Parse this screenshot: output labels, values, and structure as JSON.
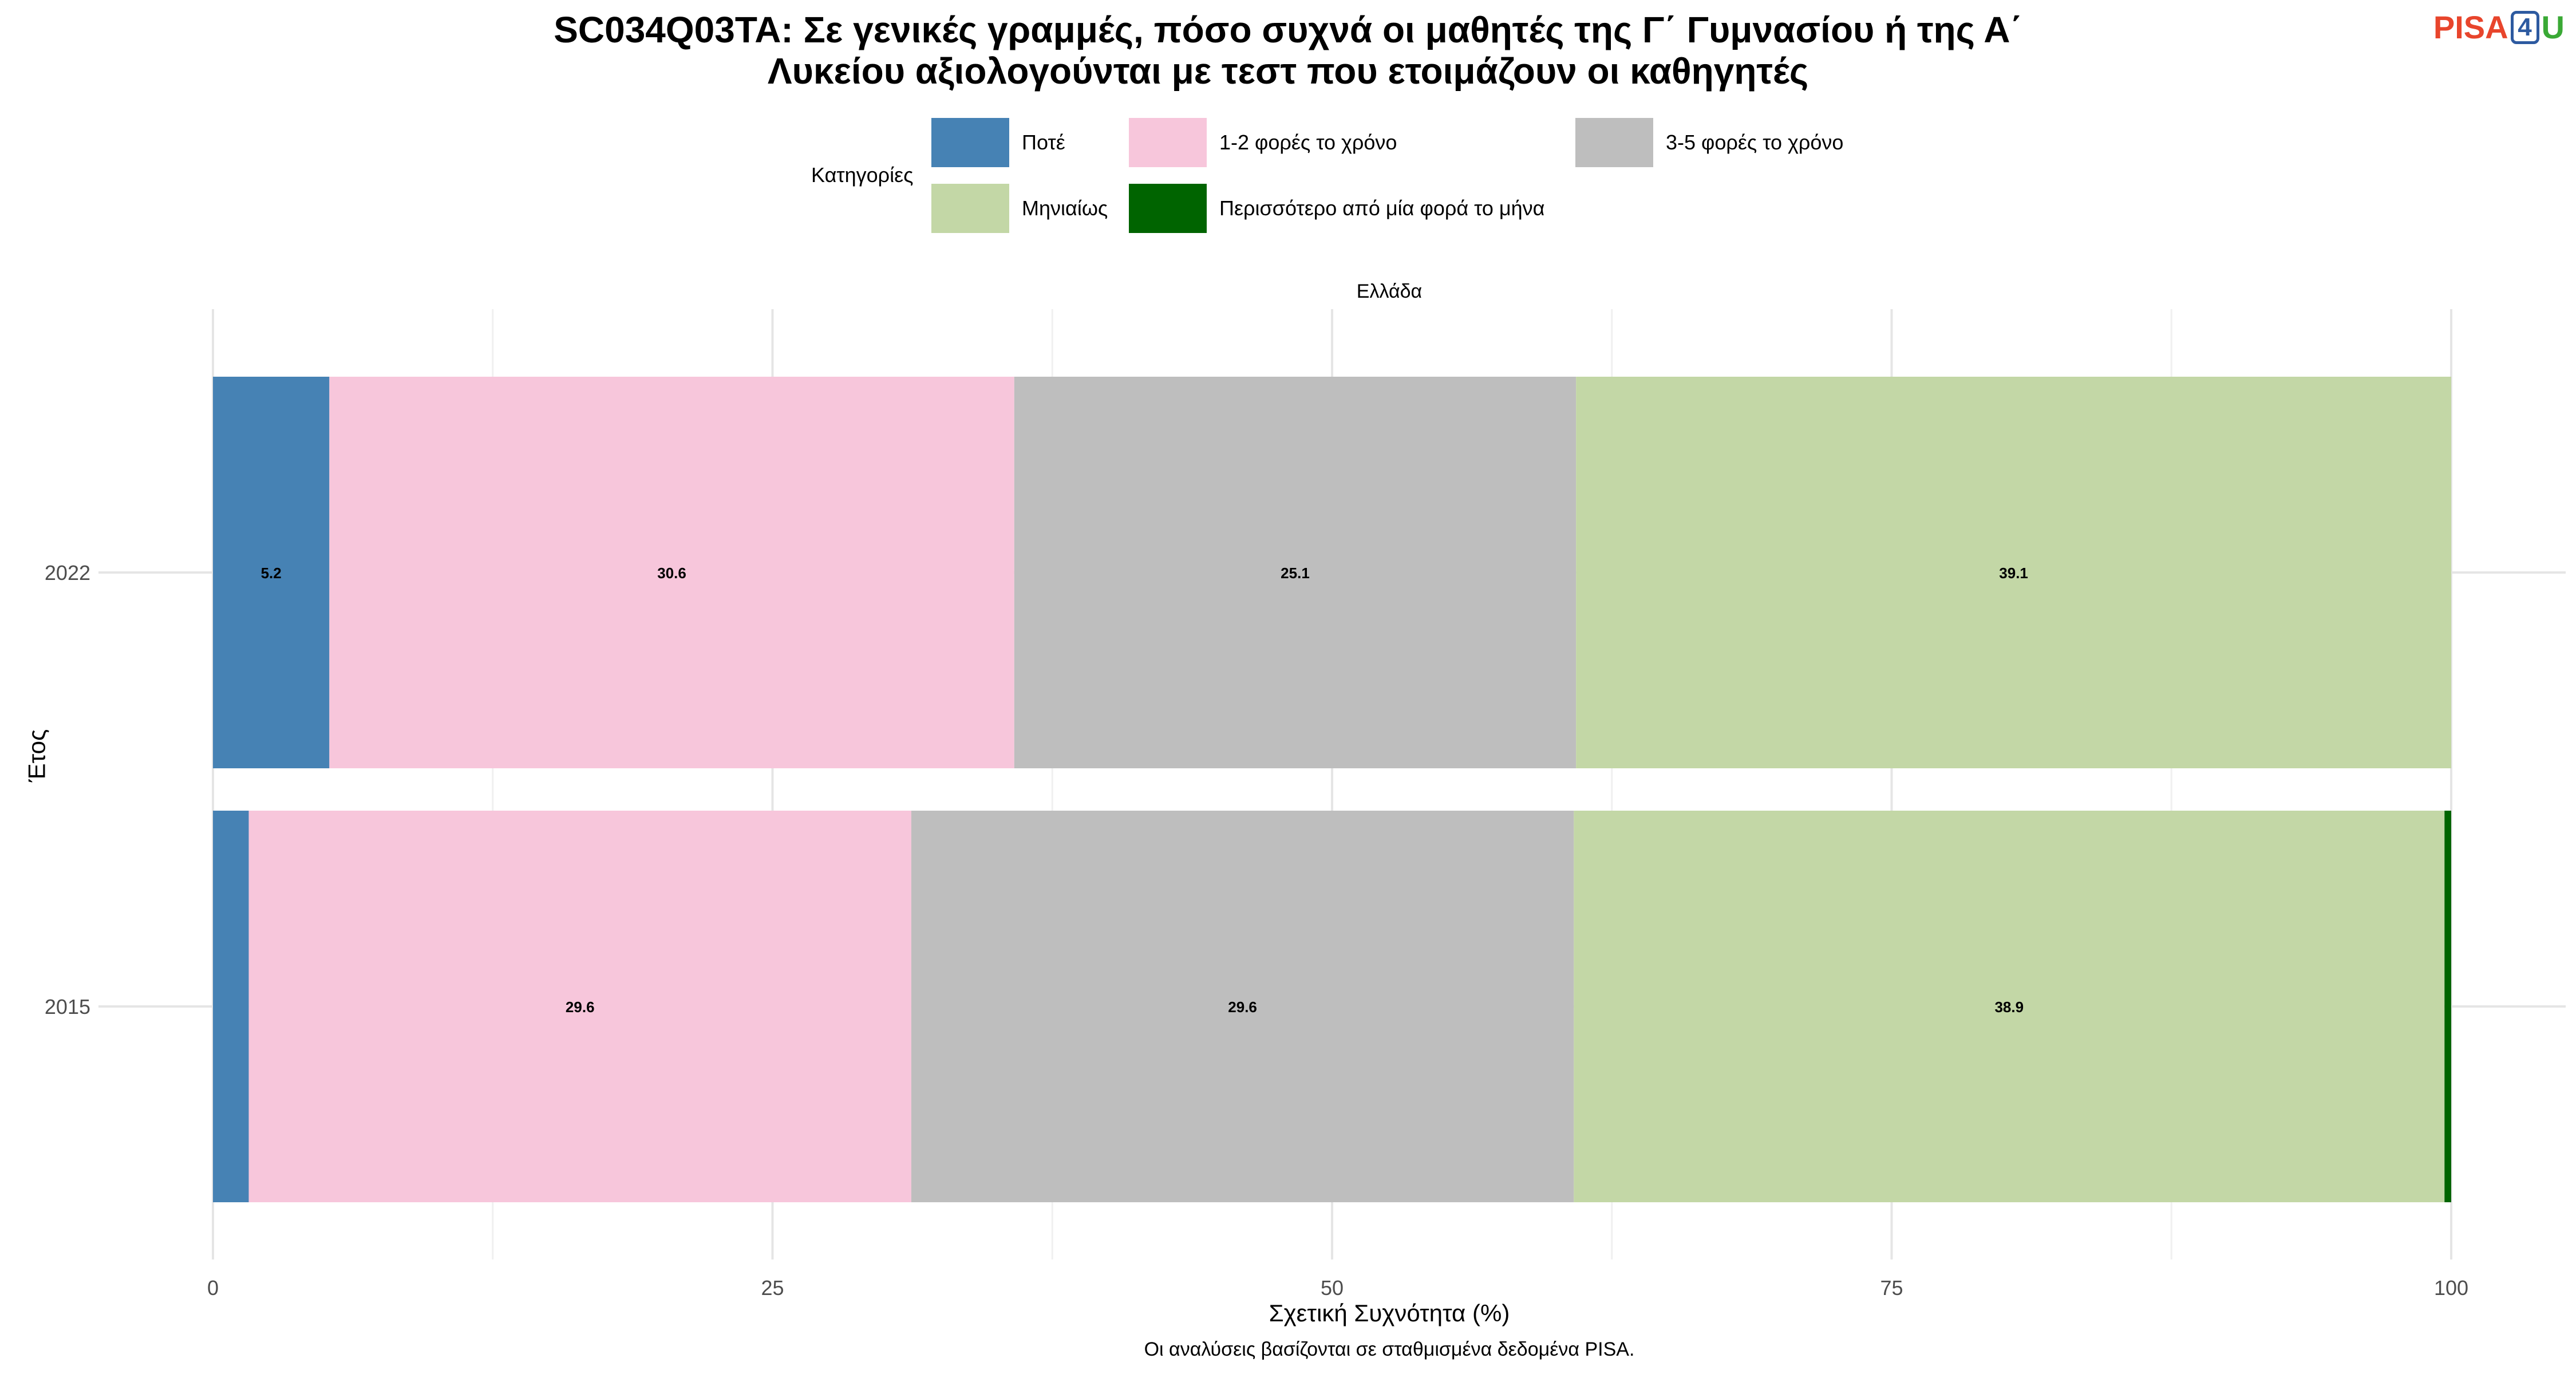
{
  "title": {
    "line1": "SC034Q03TA: Σε γενικές γραμμές, πόσο συχνά οι μαθητές της Γ΄ Γυμνασίου ή της Α΄",
    "line2": "Λυκείου αξιολογούνται με τεστ που ετοιμάζουν οι καθηγητές"
  },
  "logo": {
    "part1": "PISA",
    "part2": "4",
    "part3": "U"
  },
  "legend": {
    "title": "Κατηγορίες",
    "items": [
      {
        "label": "Ποτέ",
        "color": "#4682B4"
      },
      {
        "label": "1-2 φορές το χρόνο",
        "color": "#F7C6DB"
      },
      {
        "label": "3-5 φορές το χρόνο",
        "color": "#BEBEBE"
      },
      {
        "label": "Μηνιαίως",
        "color": "#C3D7A6"
      },
      {
        "label": "Περισσότερο από μία φορά το μήνα",
        "color": "#006400"
      }
    ]
  },
  "facet_label": "Ελλάδα",
  "caption": "Οι αναλύσεις βασίζονται σε σταθμισμένα δεδομένα PISA.",
  "chart_data": {
    "type": "bar",
    "orientation": "horizontal",
    "stacked": true,
    "categories": [
      "2022",
      "2015"
    ],
    "series": [
      {
        "name": "Ποτέ",
        "values": [
          5.2,
          1.6
        ],
        "labels": [
          "5.2",
          ""
        ]
      },
      {
        "name": "1-2 φορές το χρόνο",
        "values": [
          30.6,
          29.6
        ],
        "labels": [
          "30.6",
          "29.6"
        ]
      },
      {
        "name": "3-5 φορές το χρόνο",
        "values": [
          25.1,
          29.6
        ],
        "labels": [
          "25.1",
          "29.6"
        ]
      },
      {
        "name": "Μηνιαίως",
        "values": [
          39.1,
          38.9
        ],
        "labels": [
          "39.1",
          "38.9"
        ]
      },
      {
        "name": "Περισσότερο από μία φορά το μήνα",
        "values": [
          0.0,
          0.3
        ],
        "labels": [
          "",
          ""
        ]
      }
    ],
    "xlabel": "Σχετική Συχνότητα (%)",
    "ylabel": "Έτος",
    "xlim": [
      0,
      100
    ],
    "xticks": [
      0,
      25,
      50,
      75,
      100
    ],
    "grid": true
  }
}
